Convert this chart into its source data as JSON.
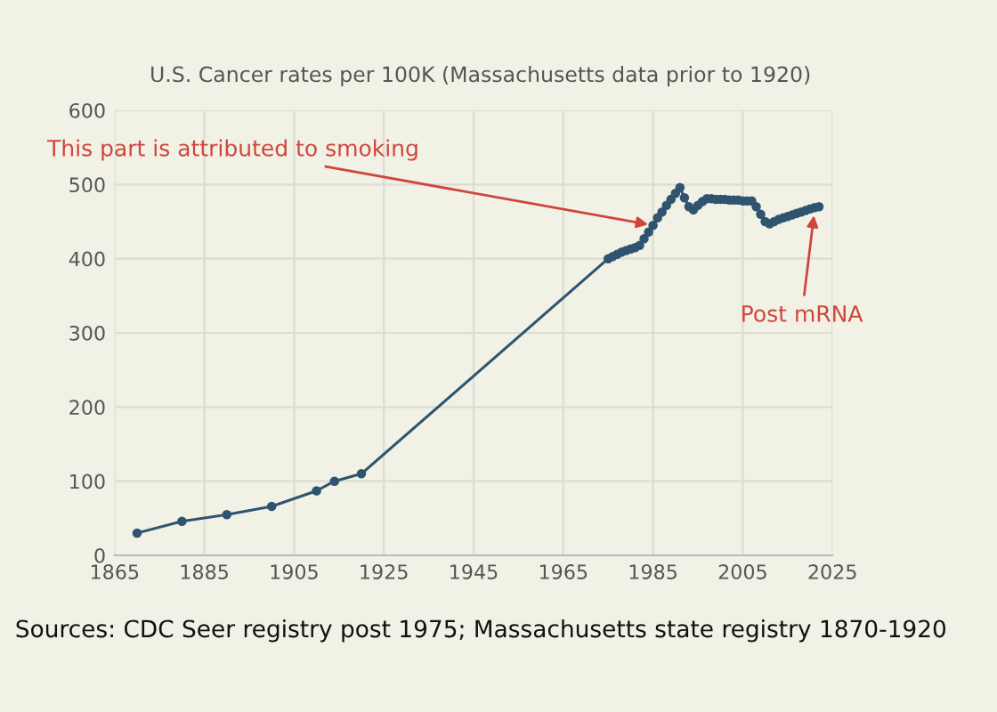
{
  "chart_data": {
    "type": "line",
    "title": "U.S. Cancer rates per 100K (Massachusetts data prior to 1920)",
    "series": [
      {
        "color": "#2f5470",
        "x": [
          1870,
          1880,
          1890,
          1900,
          1910,
          1914,
          1920,
          1975,
          1976,
          1977,
          1978,
          1979,
          1980,
          1981,
          1982,
          1983,
          1984,
          1985,
          1986,
          1987,
          1988,
          1989,
          1990,
          1991,
          1992,
          1993,
          1994,
          1995,
          1996,
          1997,
          1998,
          1999,
          2000,
          2001,
          2002,
          2003,
          2004,
          2005,
          2006,
          2007,
          2008,
          2009,
          2010,
          2011,
          2012,
          2013,
          2014,
          2015,
          2016,
          2017,
          2018,
          2019,
          2020,
          2021,
          2022
        ],
        "values": [
          30,
          46,
          55,
          66,
          87,
          100,
          110,
          400,
          403,
          406,
          409,
          411,
          413,
          415,
          418,
          427,
          436,
          445,
          455,
          463,
          472,
          480,
          488,
          496,
          482,
          470,
          466,
          472,
          477,
          481,
          481,
          480,
          480,
          480,
          479,
          479,
          479,
          478,
          478,
          478,
          470,
          460,
          450,
          447,
          450,
          453,
          455,
          457,
          459,
          461,
          463,
          465,
          467,
          469,
          470
        ]
      }
    ],
    "xlim": [
      1865,
      2025
    ],
    "xticks": [
      1865,
      1885,
      1905,
      1925,
      1945,
      1965,
      1985,
      2005,
      2025
    ],
    "ylim": [
      0,
      600
    ],
    "yticks": [
      0,
      100,
      200,
      300,
      400,
      500,
      600
    ],
    "grid": true,
    "legend": false,
    "marker": "circle",
    "line_style": "solid",
    "annotations": [
      {
        "text": "This part is attributed to smoking",
        "x": 1985,
        "y": 445
      },
      {
        "text": "Post mRNA",
        "x": 2021,
        "y": 465
      },
      "Sources: CDC Seer registry post 1975; Massachusetts state registry 1870-1920"
    ]
  }
}
